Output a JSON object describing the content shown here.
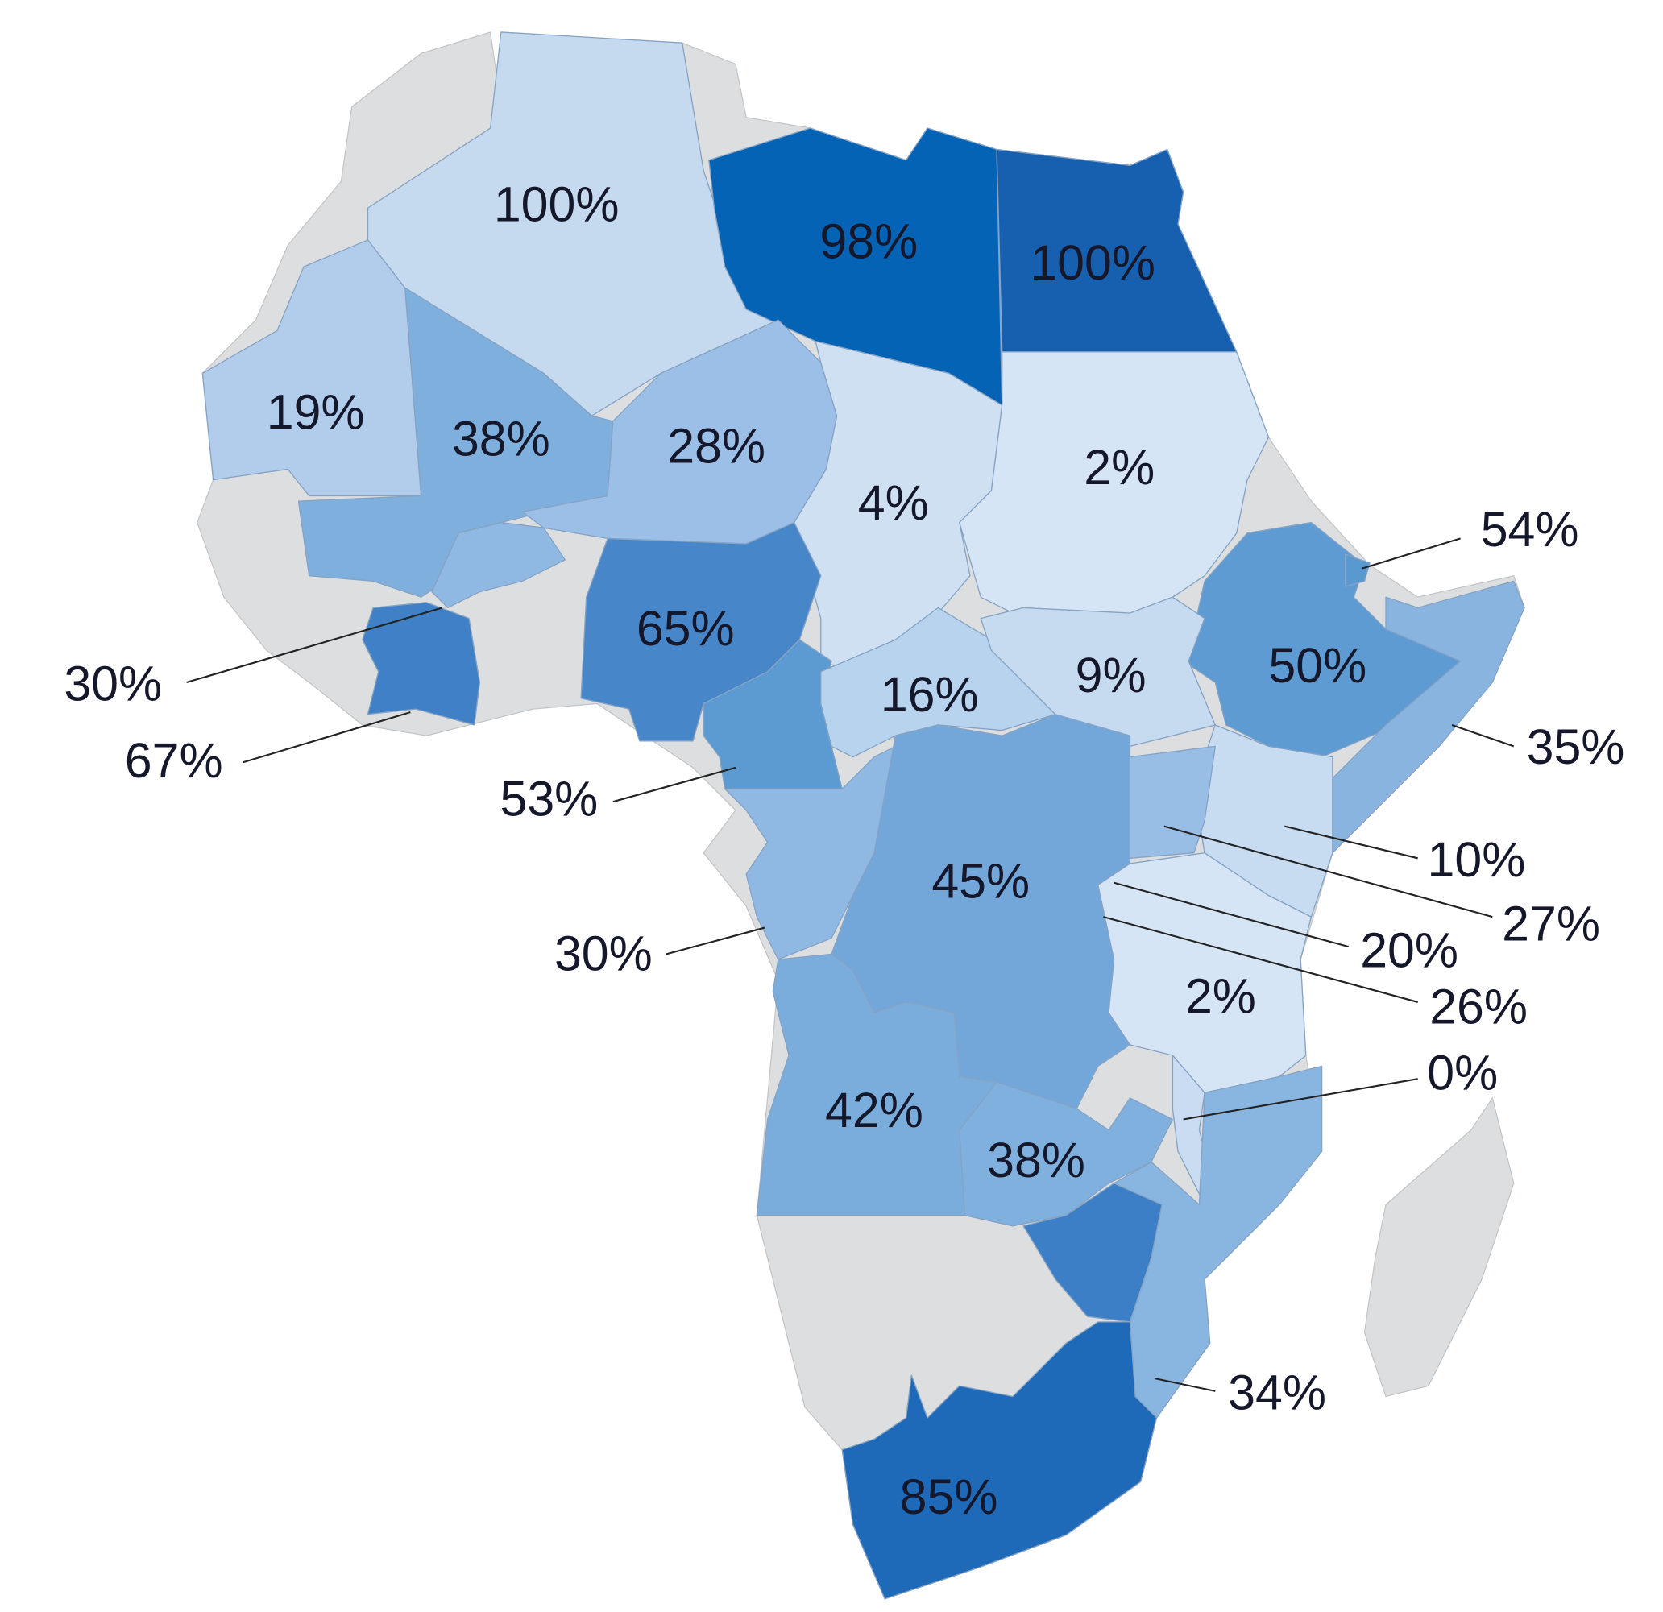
{
  "chart_data": {
    "type": "choropleth",
    "values": [
      100,
      98,
      100,
      19,
      38,
      28,
      4,
      2,
      50,
      54,
      35,
      65,
      30,
      67,
      53,
      16,
      9,
      10,
      27,
      20,
      26,
      30,
      45,
      2,
      0,
      42,
      38,
      34,
      85
    ],
    "value_labels": [
      "100%",
      "98%",
      "100%",
      "19%",
      "38%",
      "28%",
      "4%",
      "2%",
      "50%",
      "54%",
      "35%",
      "65%",
      "30%",
      "67%",
      "53%",
      "16%",
      "9%",
      "10%",
      "27%",
      "20%",
      "26%",
      "30%",
      "45%",
      "2%",
      "0%",
      "42%",
      "38%",
      "34%",
      "85%"
    ],
    "colors": [
      "#c5d9ef",
      "#0563b5",
      "#1760b0",
      "#b1cdeb",
      "#7fb0dd",
      "#9bbfe6",
      "#cfe0f3",
      "#d5e5f5",
      "#5d9bd2",
      "#5a98d0",
      "#89b4e0",
      "#4786c8",
      "#8fb9e3",
      "#3f80c6",
      "#5c9ad2",
      "#b8d3ee",
      "#c6daf0",
      "#c7dbf1",
      "#99bee6",
      "#b3cfed",
      "#9cc0e7",
      "#8fb9e3",
      "#73a7d9",
      "#d6e5f5",
      "#c9dcf1",
      "#7aaddc",
      "#7fb0de",
      "#89b5e1",
      "#1e69b8"
    ]
  }
}
